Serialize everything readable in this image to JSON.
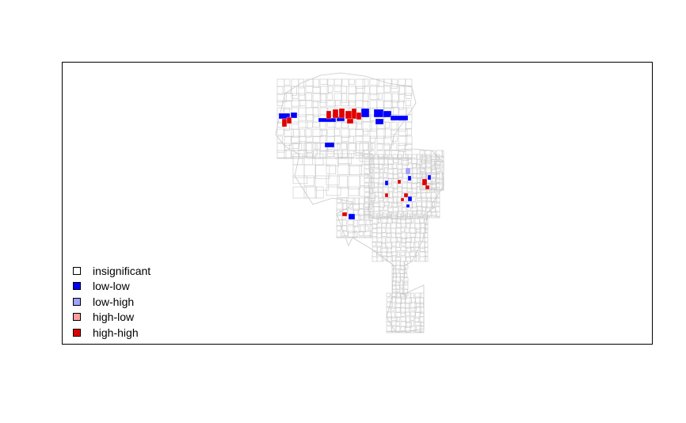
{
  "map": {
    "boundary_color": "#c8c8c8",
    "legend": [
      {
        "label": "insignificant",
        "color": "#ffffff"
      },
      {
        "label": "low-low",
        "color": "#0000ff"
      },
      {
        "label": "low-high",
        "color": "#a0a0ff"
      },
      {
        "label": "high-low",
        "color": "#ff9f9f"
      },
      {
        "label": "high-high",
        "color": "#e00000"
      }
    ]
  }
}
